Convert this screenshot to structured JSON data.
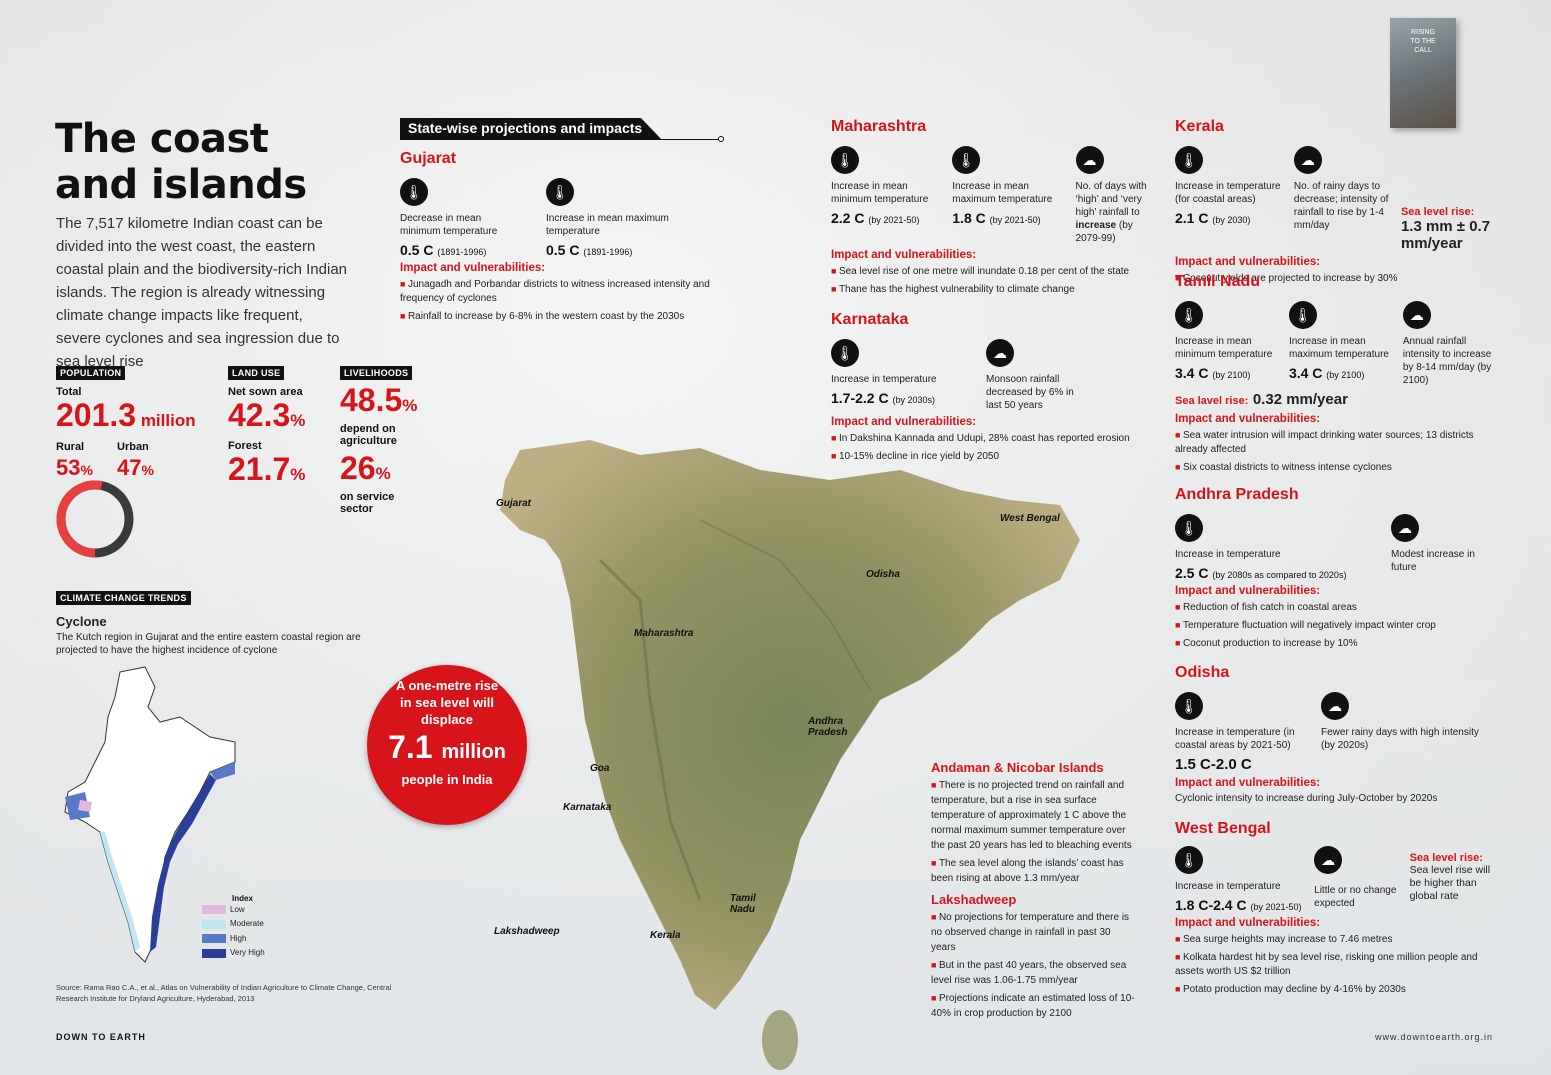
{
  "title_line1": "The coast",
  "title_line2": "and islands",
  "intro": "The 7,517 kilometre Indian coast can be divided into the west coast, the eastern coastal plain and the biodiversity-rich Indian islands. The region is already witnessing climate change impacts like frequent, severe cyclones and sea ingression due to sea level rise",
  "population": {
    "tag": "POPULATION",
    "total_label": "Total",
    "total_value": "201.3",
    "total_unit": "million",
    "rural_label": "Rural",
    "rural_value": "53",
    "urban_label": "Urban",
    "urban_value": "47",
    "pct": "%"
  },
  "land_use": {
    "tag": "LAND USE",
    "sown_label": "Net sown area",
    "sown_value": "42.3",
    "forest_label": "Forest",
    "forest_value": "21.7",
    "pct": "%"
  },
  "livelihoods": {
    "tag": "LIVELIHOODS",
    "agri_value": "48.5",
    "agri_label": "depend on agriculture",
    "service_value": "26",
    "service_label": "on service sector",
    "pct": "%"
  },
  "climate_trends": {
    "tag": "CLIMATE CHANGE TRENDS",
    "heading": "Cyclone",
    "text": "The Kutch region in Gujarat and the entire eastern coastal region are projected to have the highest incidence of cyclone"
  },
  "legend": {
    "title": "Index",
    "items": [
      {
        "label": "Low",
        "color": "#e2b8dc"
      },
      {
        "label": "Moderate",
        "color": "#bfe6f2"
      },
      {
        "label": "High",
        "color": "#5a78c8"
      },
      {
        "label": "Very High",
        "color": "#2a3f9a"
      }
    ]
  },
  "source": "Source: Rama Rao C.A., et al., Atlas on Vulnerability of Indian Agriculture to Climate Change, Central Research Institute for Dryland Agriculture, Hyderabad, 2013",
  "footer_left": "DOWN TO EARTH",
  "footer_right": "www.downtoearth.org.in",
  "bubble": {
    "text": "A one-metre rise in sea level will displace",
    "number": "7.1",
    "unit": "million",
    "tail": "people in India"
  },
  "book_title": "RISING TO THE CALL",
  "section_heading": "State-wise projections and impacts",
  "impact_heading": "Impact and vulnerabilities:",
  "gujarat": {
    "name": "Gujarat",
    "stats": [
      {
        "desc": "Decrease in mean minimum temperature",
        "value": "0.5 C",
        "note": "(1891-1996)"
      },
      {
        "desc": "Increase in mean maximum temperature",
        "value": "0.5 C",
        "note": "(1891-1996)"
      }
    ],
    "impacts": [
      "Junagadh and Porbandar districts to witness increased intensity and frequency of cyclones",
      "Rainfall to increase by 6-8% in the western coast by the 2030s"
    ]
  },
  "maharashtra": {
    "name": "Maharashtra",
    "stats": [
      {
        "desc": "Increase in mean minimum temperature",
        "value": "2.2 C",
        "note": "(by 2021-50)"
      },
      {
        "desc": "Increase in mean maximum temperature",
        "value": "1.8 C",
        "note": "(by 2021-50)"
      }
    ],
    "rain_desc": "No. of days with ‘high’ and ‘very high’ rainfall to",
    "rain_bold": "increase",
    "rain_note": "(by 2079-99)",
    "impacts": [
      "Sea level rise of one metre will inundate 0.18 per cent of the state",
      "Thane has the highest vulnerability to climate change"
    ]
  },
  "karnataka": {
    "name": "Karnataka",
    "stat": {
      "desc": "Increase in temperature",
      "value": "1.7-2.2 C",
      "note": "(by 2030s)"
    },
    "rain": "Monsoon rainfall decreased by 6% in last 50 years",
    "impacts": [
      "In Dakshina Kannada and Udupi, 28% coast has reported erosion",
      "10-15% decline in rice yield by 2050"
    ]
  },
  "kerala": {
    "name": "Kerala",
    "stat": {
      "desc": "Increase in temperature (for coastal areas)",
      "value": "2.1 C",
      "note": "(by 2030)"
    },
    "rain": "No. of rainy days to decrease; intensity of rainfall to rise by 1-4 mm/day",
    "sea_label": "Sea level rise:",
    "sea_value": "1.3 mm ± 0.7 mm/year",
    "impacts": [
      "Coconut yields are projected to increase by 30%"
    ]
  },
  "tamil_nadu": {
    "name": "Tamil Nadu",
    "stats": [
      {
        "desc": "Increase in mean minimum temperature",
        "value": "3.4 C",
        "note": "(by 2100)"
      },
      {
        "desc": "Increase in mean maximum temperature",
        "value": "3.4 C",
        "note": "(by 2100)"
      }
    ],
    "rain": "Annual rainfall intensity to increase by 8-14 mm/day (by 2100)",
    "sea_label": "Sea lavel rise:",
    "sea_value": "0.32 mm/year",
    "impacts": [
      "Sea water intrusion will impact drinking water sources; 13 districts already affected",
      "Six coastal districts to witness intense cyclones"
    ]
  },
  "andhra": {
    "name": "Andhra Pradesh",
    "stat": {
      "desc": "Increase in temperature",
      "value": "2.5 C",
      "note": "(by 2080s as compared to 2020s)"
    },
    "rain": "Modest increase in future",
    "impacts": [
      "Reduction of fish catch in coastal areas",
      "Temperature fluctuation will negatively impact winter crop",
      "Coconut production to increase by 10%"
    ]
  },
  "odisha": {
    "name": "Odisha",
    "stat": {
      "desc": "Increase in temperature (in coastal areas by 2021-50)",
      "value": "1.5 C-2.0 C"
    },
    "rain": "Fewer rainy days with high intensity (by 2020s)",
    "impact_text": "Cyclonic intensity to increase during July-October by 2020s"
  },
  "west_bengal": {
    "name": "West Bengal",
    "stat": {
      "desc": "Increase in temperature",
      "value": "1.8 C-2.4 C",
      "note": "(by 2021-50)"
    },
    "rain": "Little or no change expected",
    "sea_label": "Sea level rise:",
    "sea_text": "Sea level rise will be higher than global rate",
    "impacts": [
      "Sea surge heights may increase to 7.46 metres",
      "Kolkata hardest hit by sea level rise, risking one million people and assets worth US $2 trillion",
      "Potato production may decline by 4-16% by 2030s"
    ]
  },
  "andaman": {
    "name": "Andaman & Nicobar Islands",
    "impacts": [
      "There is no projected trend on rainfall and temperature, but a rise in sea surface temperature of approximately 1 C above the normal maximum summer temperature over the past 20 years has led to bleaching events",
      "The sea level along the islands’ coast has been rising at above 1.3 mm/year"
    ]
  },
  "lakshadweep": {
    "name": "Lakshadweep",
    "impacts": [
      "No projections for temperature and there is no observed change in rainfall in past 30 years",
      "But in the past 40 years, the observed sea level rise was 1.06-1.75 mm/year",
      "Projections indicate an estimated loss of 10-40% in crop production by 2100"
    ]
  },
  "map_labels": {
    "gujarat": "Gujarat",
    "maharashtra": "Maharashtra",
    "goa": "Goa",
    "karnataka": "Karnataka",
    "kerala": "Kerala",
    "tamil": "Tamil Nadu",
    "andhra": "Andhra Pradesh",
    "odisha": "Odisha",
    "west_bengal": "West Bengal",
    "lakshadweep": "Lakshadweep"
  },
  "population_rural_share": 0.53,
  "colors": {
    "accent": "#d7141a",
    "dark": "#111111"
  },
  "icons": {
    "temperature": "thermometer-icon",
    "rain": "rain-cloud-icon"
  }
}
